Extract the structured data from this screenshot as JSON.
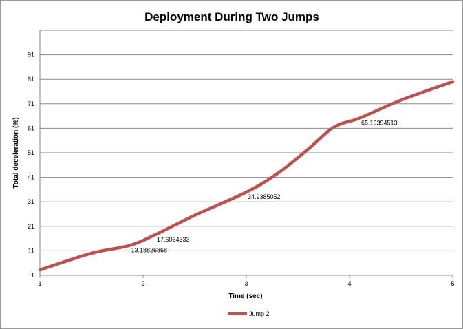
{
  "chart_data": {
    "type": "line",
    "title": "Deployment During Two Jumps",
    "xlabel": "Time (sec)",
    "ylabel": "Total deceleration (%)",
    "xlim": [
      1,
      5
    ],
    "ylim": [
      1,
      101
    ],
    "xticks": [
      "1",
      "2",
      "3",
      "4",
      "5"
    ],
    "yticks": [
      "1",
      "11",
      "21",
      "31",
      "41",
      "51",
      "61",
      "71",
      "81",
      "91"
    ],
    "grid": "horizontal",
    "legend": "bottom",
    "series": [
      {
        "name": "Jump 2",
        "color": "#c0504d",
        "x": [
          1,
          1.5,
          1.87,
          2.12,
          2.5,
          3,
          3.3,
          3.6,
          3.85,
          4.1,
          4.5,
          5
        ],
        "y": [
          3.2,
          10,
          13.18826868,
          17.6064333,
          25.5,
          34.9385052,
          42.5,
          52.5,
          61.5,
          65.19394513,
          72.5,
          80
        ]
      }
    ],
    "data_labels": [
      {
        "x": 1.87,
        "text": "13.18826868"
      },
      {
        "x": 2.12,
        "text": "17.6064333"
      },
      {
        "x": 3,
        "text": "34.9385052"
      },
      {
        "x": 4.1,
        "text": "65.19394513"
      }
    ]
  }
}
